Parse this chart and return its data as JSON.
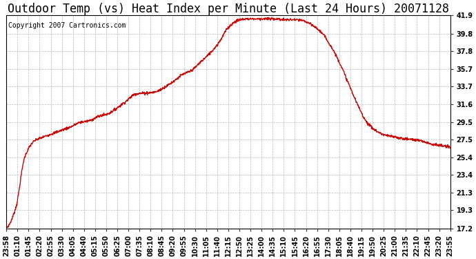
{
  "title": "Outdoor Temp (vs) Heat Index per Minute (Last 24 Hours) 20071128",
  "copyright_text": "Copyright 2007 Cartronics.com",
  "line_color": "#cc0000",
  "background_color": "#ffffff",
  "plot_bg_color": "#ffffff",
  "grid_color": "#bbbbbb",
  "ytick_labels": [
    "17.2",
    "19.3",
    "21.3",
    "23.4",
    "25.4",
    "27.5",
    "29.5",
    "31.6",
    "33.7",
    "35.7",
    "37.8",
    "39.8",
    "41.9"
  ],
  "ytick_values": [
    17.2,
    19.3,
    21.3,
    23.4,
    25.4,
    27.5,
    29.5,
    31.6,
    33.7,
    35.7,
    37.8,
    39.8,
    41.9
  ],
  "ymin": 17.2,
  "ymax": 41.9,
  "xtick_labels": [
    "23:58",
    "01:10",
    "01:45",
    "02:20",
    "02:55",
    "03:30",
    "04:05",
    "04:40",
    "05:15",
    "05:50",
    "06:25",
    "07:00",
    "07:35",
    "08:10",
    "08:45",
    "09:20",
    "09:55",
    "10:30",
    "11:05",
    "11:40",
    "12:15",
    "12:50",
    "13:25",
    "14:00",
    "14:35",
    "15:10",
    "15:45",
    "16:20",
    "16:55",
    "17:30",
    "18:05",
    "18:40",
    "19:15",
    "19:50",
    "20:25",
    "21:00",
    "21:35",
    "22:10",
    "22:45",
    "23:20",
    "23:55"
  ],
  "title_fontsize": 12,
  "copyright_fontsize": 7,
  "tick_fontsize": 7,
  "line_width": 1.0,
  "figwidth": 6.9,
  "figheight": 3.75,
  "curve_x": [
    0,
    0.5,
    1.0,
    1.5,
    2.0,
    2.5,
    3.0,
    3.5,
    4.0,
    4.5,
    5.0,
    5.5,
    6.0,
    6.5,
    7.0,
    7.5,
    8.0,
    8.5,
    9.0,
    9.5,
    10.0,
    10.5,
    11.0,
    11.5,
    12.0,
    12.5,
    13.0,
    13.5,
    14.0,
    14.5,
    15.0,
    15.5,
    16.0,
    16.5,
    17.0,
    17.5,
    18.0,
    18.5,
    19.0,
    19.5,
    20.0,
    20.5,
    21.0,
    21.5,
    22.0,
    22.5,
    23.0,
    23.5,
    24.0
  ],
  "curve_y": [
    17.3,
    19.5,
    25.5,
    27.3,
    27.8,
    28.2,
    28.6,
    29.0,
    29.5,
    29.7,
    30.2,
    30.5,
    31.2,
    32.0,
    32.8,
    32.9,
    33.0,
    33.5,
    34.2,
    35.0,
    35.5,
    36.5,
    37.5,
    38.8,
    40.5,
    41.3,
    41.5,
    41.5,
    41.5,
    41.5,
    41.4,
    41.4,
    41.3,
    40.8,
    40.0,
    38.5,
    36.5,
    34.0,
    31.5,
    29.5,
    28.5,
    28.0,
    27.8,
    27.6,
    27.5,
    27.3,
    27.0,
    26.8,
    26.6
  ]
}
